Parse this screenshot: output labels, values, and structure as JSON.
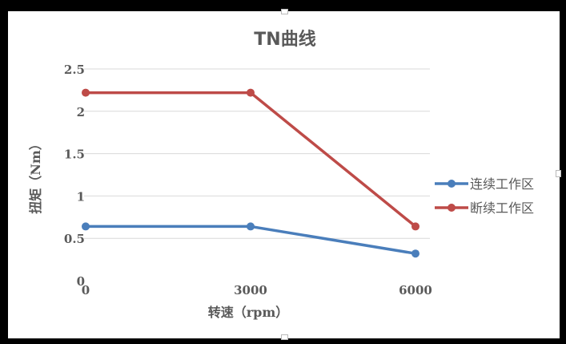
{
  "chart_data": {
    "type": "line",
    "title": "TN曲线",
    "xlabel": "转速（rpm）",
    "ylabel": "扭矩（Nm）",
    "categories": [
      "0",
      "3000",
      "6000"
    ],
    "y_ticks": [
      "0",
      "0.5",
      "1",
      "1.5",
      "2",
      "2.5"
    ],
    "ylim": [
      0,
      2.5
    ],
    "grid": true,
    "legend": "right",
    "series": [
      {
        "name": "连续工作区",
        "color": "#4A7EBB",
        "values": [
          0.64,
          0.64,
          0.32
        ]
      },
      {
        "name": "断续工作区",
        "color": "#BE4B48",
        "values": [
          2.22,
          2.22,
          0.64
        ]
      }
    ]
  }
}
